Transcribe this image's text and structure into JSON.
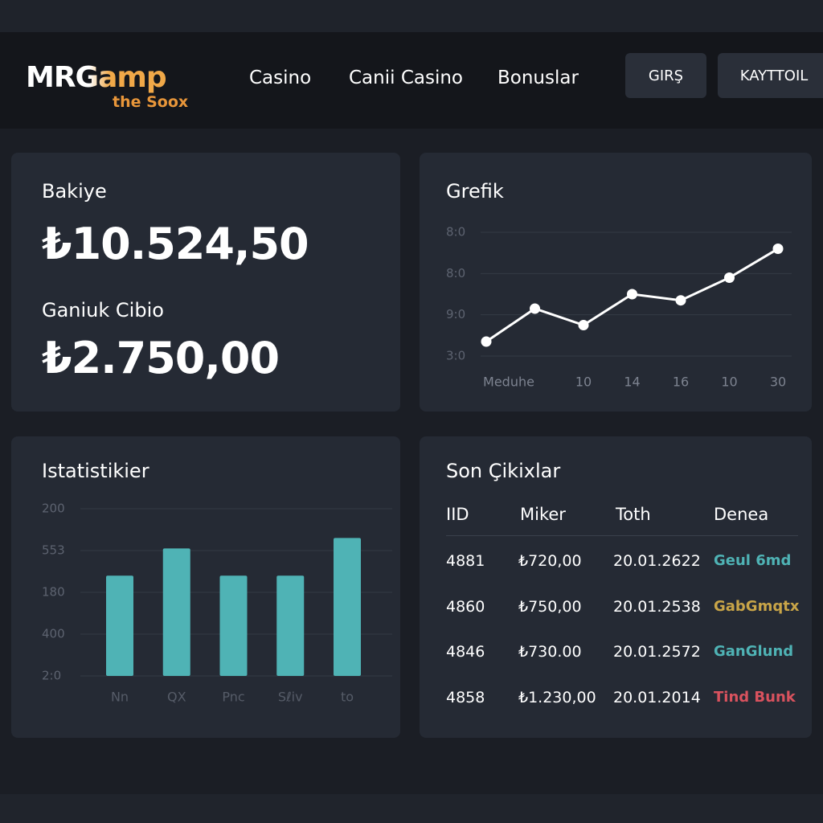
{
  "header": {
    "logo": "MRGamp",
    "logo_sub": "the Soox",
    "nav": [
      "Casino",
      "Canii Casino",
      "Bonuslar"
    ],
    "buttons": [
      "GIRŞ",
      "KAYTTOIL"
    ]
  },
  "balance": {
    "title": "Bakiye",
    "amount": "₺10.524,50",
    "label": "Ganiuk Cibio",
    "amount2": "₺2.750,00"
  },
  "chart_data": [
    {
      "type": "line",
      "title": "Grefik",
      "categories": [
        "Meduhe",
        null,
        "10",
        "14",
        "16",
        "10",
        "30"
      ],
      "values": [
        0.35,
        1.15,
        0.75,
        1.5,
        1.35,
        1.9,
        2.6
      ],
      "color": "#ffffff",
      "ylim": [
        0,
        3
      ],
      "yticks": [
        {
          "value": 0,
          "label": "3:0"
        },
        {
          "value": 1,
          "label": "9:0"
        },
        {
          "value": 2,
          "label": "8:0"
        },
        {
          "value": 3,
          "label": "8:0"
        }
      ],
      "grid": true
    },
    {
      "type": "bar",
      "title": "Istatistikier",
      "categories": [
        "Nn",
        "QX",
        "Pnc",
        "Sℓiv",
        "to"
      ],
      "values": [
        2.4,
        3.05,
        2.4,
        2.4,
        3.3
      ],
      "color": "#4fb3b5",
      "ylim": [
        0,
        4
      ],
      "yticks": [
        {
          "value": 0,
          "label": "2:0"
        },
        {
          "value": 1,
          "label": "400"
        },
        {
          "value": 2,
          "label": "180"
        },
        {
          "value": 3,
          "label": "553"
        },
        {
          "value": 4,
          "label": "200"
        }
      ],
      "grid": true
    }
  ],
  "transactions": {
    "title": "Son Çikixlar",
    "columns": [
      "IID",
      "Miker",
      "Toth",
      "Denea"
    ],
    "rows": [
      {
        "id": "4881",
        "amount": "₺720,00",
        "date": "20.01.2622",
        "status": "Geul 6md",
        "color": "#4fb3b5"
      },
      {
        "id": "4860",
        "amount": "₺750,00",
        "date": "20.01.2538",
        "status": "GabGmqtx",
        "color": "#c9a548"
      },
      {
        "id": "4846",
        "amount": "₺730.00",
        "date": "20.01.2572",
        "status": "GanGlund",
        "color": "#4fb3b5"
      },
      {
        "id": "4858",
        "amount": "₺1.230,00",
        "date": "20.01.2014",
        "status": "Tind Bunk",
        "color": "#d9525e"
      }
    ]
  }
}
